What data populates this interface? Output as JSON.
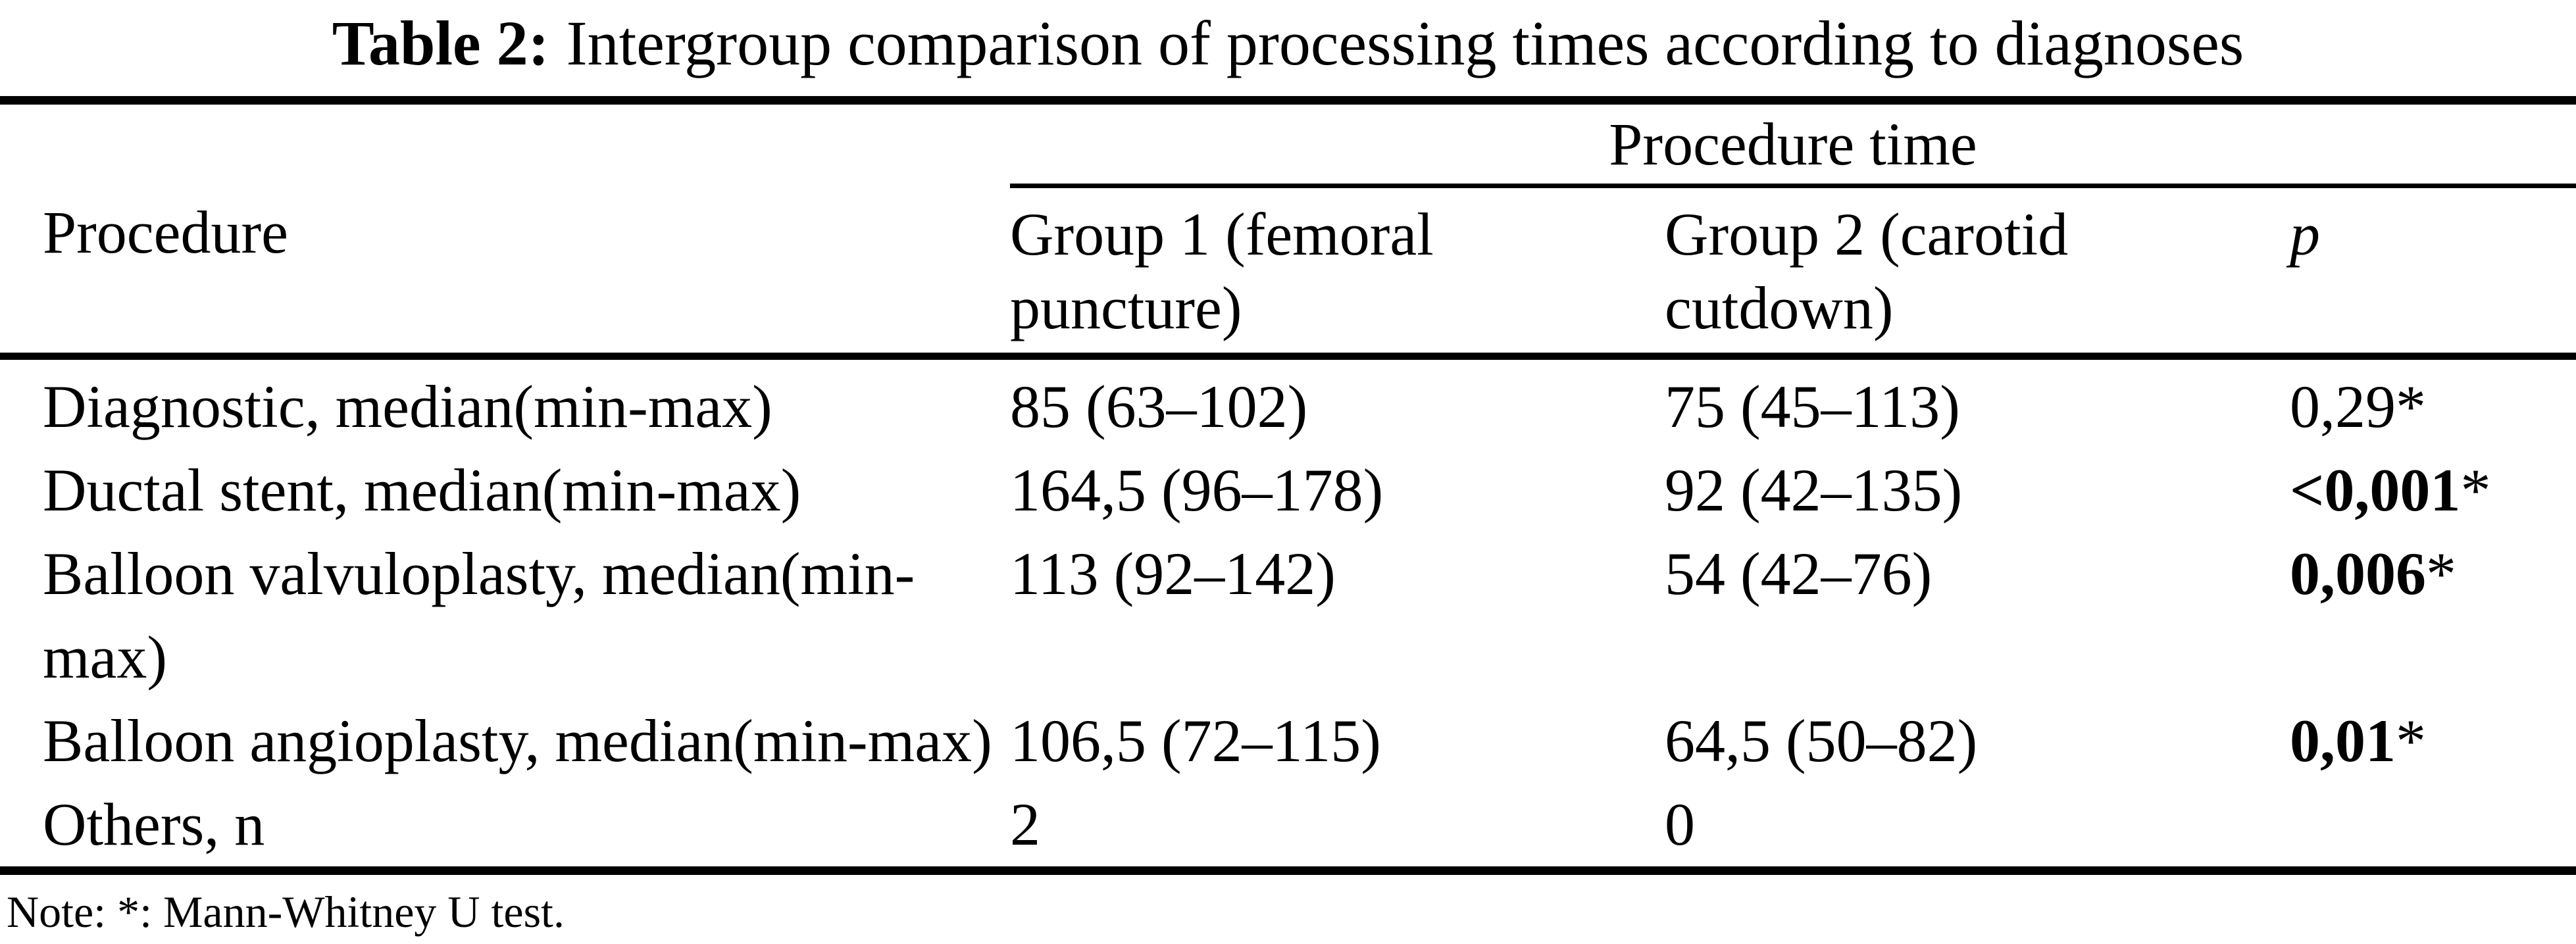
{
  "title": {
    "label": "Table 2:",
    "text": "Intergroup comparison of processing times according to diagnoses"
  },
  "table": {
    "group_header": "Procedure time",
    "columns": [
      "Procedure",
      [
        "Group 1 (femoral",
        "puncture)"
      ],
      [
        "Group 2 (carotid",
        "cutdown)"
      ],
      "p"
    ],
    "rows": [
      {
        "procedure_lines": [
          "Diagnostic, median(min-max)"
        ],
        "group1": "85 (63–102)",
        "group2": "75 (45–113)",
        "p": "0,29",
        "p_marker": "*",
        "p_bold": false
      },
      {
        "procedure_lines": [
          "Ductal stent, median(min-max)"
        ],
        "group1": "164,5 (96–178)",
        "group2": "92 (42–135)",
        "p": "<0,001",
        "p_marker": "*",
        "p_bold": true
      },
      {
        "procedure_lines": [
          "Balloon valvuloplasty, median(min-",
          "max)"
        ],
        "group1": "113 (92–142)",
        "group2": "54 (42–76)",
        "p": "0,006",
        "p_marker": "*",
        "p_bold": true
      },
      {
        "procedure_lines": [
          "Balloon angioplasty, median(min-max)"
        ],
        "group1": "106,5 (72–115)",
        "group2": "64,5 (50–82)",
        "p": "0,01",
        "p_marker": "*",
        "p_bold": true
      },
      {
        "procedure_lines": [
          "Others, n"
        ],
        "group1": "2",
        "group2": "0",
        "p": "",
        "p_marker": "",
        "p_bold": false
      }
    ],
    "note": "Note: *: Mann-Whitney U test."
  }
}
